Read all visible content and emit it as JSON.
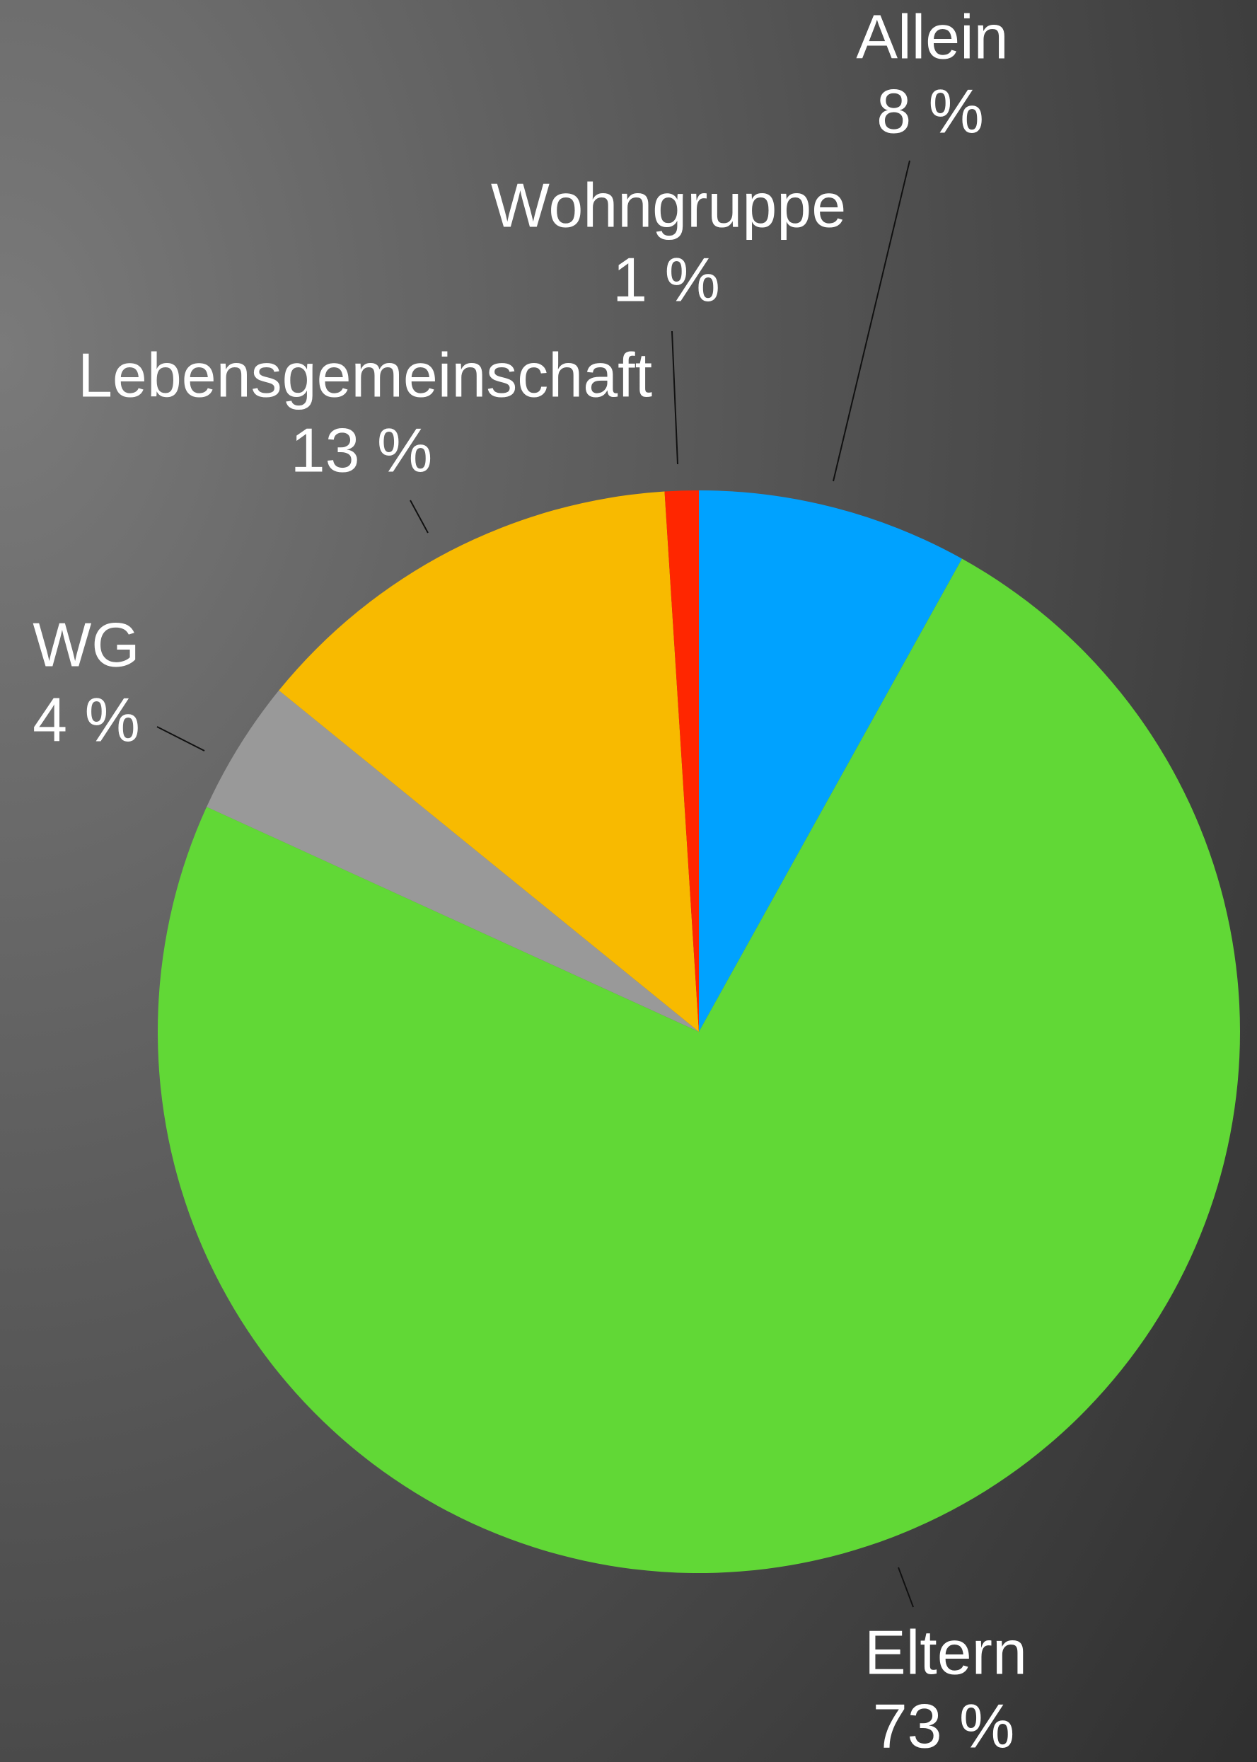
{
  "chart_data": {
    "type": "pie",
    "categories": [
      "Allein",
      "Eltern",
      "WG",
      "Lebensgemeinschaft",
      "Wohngruppe"
    ],
    "values": [
      8,
      73,
      4,
      13,
      1
    ],
    "value_labels": [
      "8 %",
      "73 %",
      "4 %",
      "13 %",
      "1 %"
    ],
    "colors": [
      "#00a2ff",
      "#61d836",
      "#999999",
      "#f8ba00",
      "#ff2600"
    ]
  }
}
